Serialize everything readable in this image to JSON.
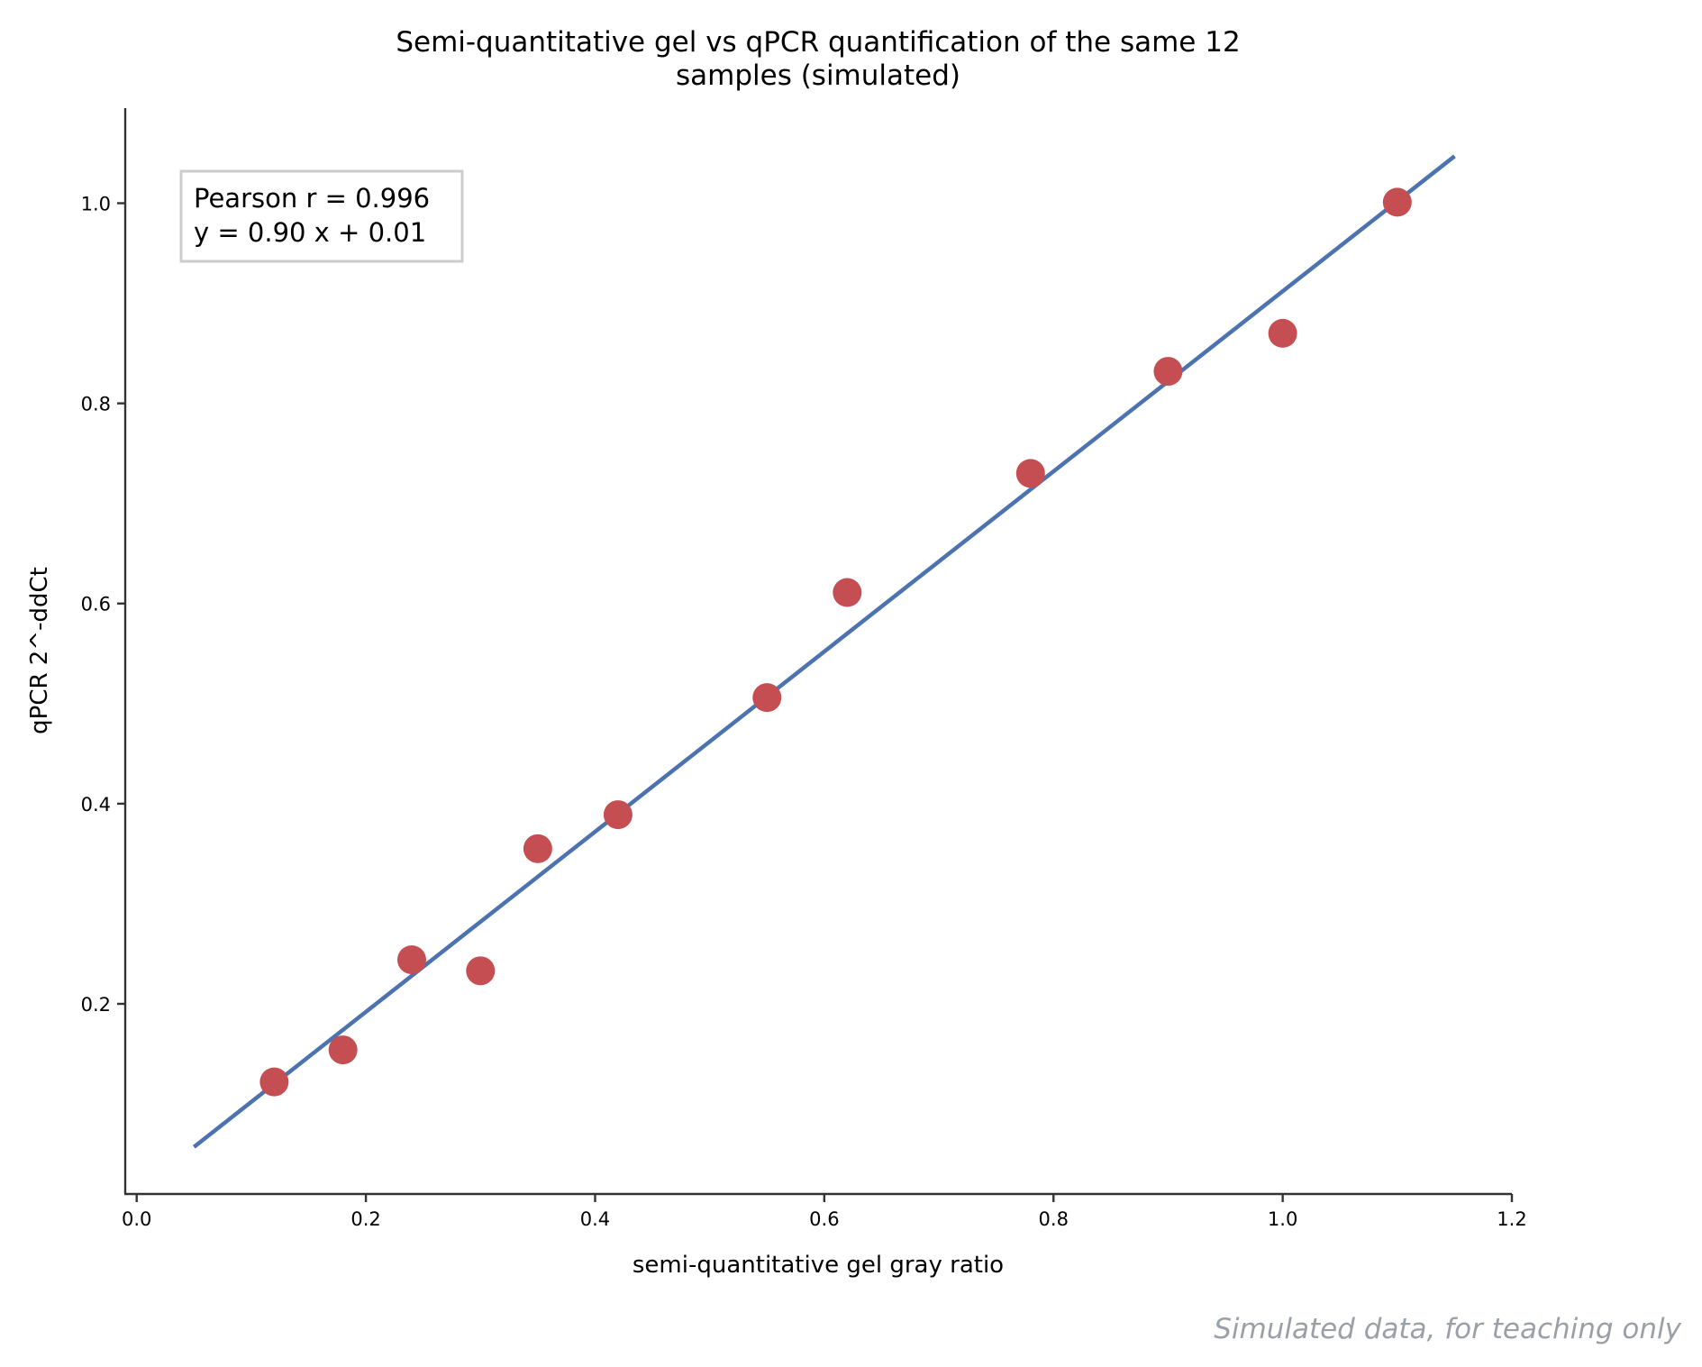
{
  "chart_data": {
    "type": "scatter",
    "title_lines": [
      "Semi-quantitative gel vs qPCR quantification of the same 12",
      "samples (simulated)"
    ],
    "xlabel": "semi-quantitative gel gray ratio",
    "ylabel": "qPCR 2^-ddCt",
    "xlim": [
      -0.01,
      1.2
    ],
    "ylim": [
      0.01,
      1.095
    ],
    "xticks": [
      0.0,
      0.2,
      0.4,
      0.6,
      0.8,
      1.0,
      1.2
    ],
    "xtick_labels": [
      "0.0",
      "0.2",
      "0.4",
      "0.6",
      "0.8",
      "1.0",
      "1.2"
    ],
    "yticks": [
      0.2,
      0.4,
      0.6,
      0.8,
      1.0
    ],
    "ytick_labels": [
      "0.2",
      "0.4",
      "0.6",
      "0.8",
      "1.0"
    ],
    "grid": false,
    "points": {
      "x": [
        0.12,
        0.18,
        0.24,
        0.3,
        0.35,
        0.42,
        0.55,
        0.62,
        0.78,
        0.9,
        1.0,
        1.1
      ],
      "y": [
        0.122,
        0.154,
        0.244,
        0.233,
        0.355,
        0.389,
        0.506,
        0.611,
        0.73,
        0.832,
        0.87,
        1.001
      ],
      "color": "#c44e52"
    },
    "fit_line": {
      "x": [
        0.05,
        1.15
      ],
      "y": [
        0.057,
        1.047
      ],
      "color": "#4c72b0"
    },
    "annotation_lines": [
      "Pearson r = 0.996",
      "y = 0.90 x + 0.01"
    ],
    "watermark": "Simulated data, for teaching only"
  }
}
